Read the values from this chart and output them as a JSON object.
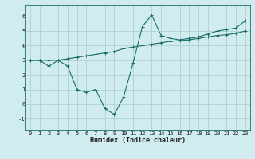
{
  "background_color": "#d0ecee",
  "grid_color": "#a8cccc",
  "line_color": "#1a6b6b",
  "xlabel": "Humidex (Indice chaleur)",
  "xlim": [
    -0.5,
    23.5
  ],
  "ylim": [
    -1.8,
    6.8
  ],
  "yticks": [
    -1,
    0,
    1,
    2,
    3,
    4,
    5,
    6
  ],
  "xticks": [
    0,
    1,
    2,
    3,
    4,
    5,
    6,
    7,
    8,
    9,
    10,
    11,
    12,
    13,
    14,
    15,
    16,
    17,
    18,
    19,
    20,
    21,
    22,
    23
  ],
  "series1_x": [
    0,
    1,
    2,
    3,
    4,
    5,
    6,
    7,
    8,
    9,
    10,
    11,
    12,
    13,
    14,
    15,
    16,
    17,
    18,
    19,
    20,
    21,
    22,
    23
  ],
  "series1_y": [
    3.0,
    3.0,
    3.0,
    3.0,
    3.1,
    3.2,
    3.3,
    3.4,
    3.5,
    3.6,
    3.8,
    3.9,
    4.0,
    4.1,
    4.2,
    4.3,
    4.35,
    4.4,
    4.5,
    4.6,
    4.7,
    4.75,
    4.85,
    5.0
  ],
  "series2_x": [
    0,
    1,
    2,
    3,
    4,
    5,
    6,
    7,
    8,
    9,
    10,
    11,
    12,
    13,
    14,
    15,
    16,
    17,
    18,
    19,
    20,
    21,
    22,
    23
  ],
  "series2_y": [
    3.0,
    3.0,
    2.6,
    3.0,
    2.6,
    1.0,
    0.8,
    1.0,
    -0.3,
    -0.7,
    0.5,
    2.8,
    5.3,
    6.1,
    4.7,
    4.5,
    4.4,
    4.5,
    4.6,
    4.8,
    5.0,
    5.1,
    5.2,
    5.7
  ],
  "tick_fontsize": 5.0,
  "xlabel_fontsize": 6.0,
  "marker_size": 2.5,
  "line_width": 0.8
}
